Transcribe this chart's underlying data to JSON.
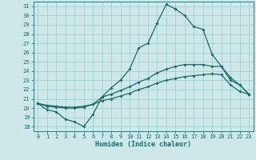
{
  "xlabel": "Humidex (Indice chaleur)",
  "bg_color": "#cce8e8",
  "line_color": "#1a6b6b",
  "grid_color": "#99cccc",
  "xlim": [
    -0.5,
    23.5
  ],
  "ylim": [
    17.5,
    31.5
  ],
  "yticks": [
    18,
    19,
    20,
    21,
    22,
    23,
    24,
    25,
    26,
    27,
    28,
    29,
    30,
    31
  ],
  "xticks": [
    0,
    1,
    2,
    3,
    4,
    5,
    6,
    7,
    8,
    9,
    10,
    11,
    12,
    13,
    14,
    15,
    16,
    17,
    18,
    19,
    20,
    21,
    22,
    23
  ],
  "line1_x": [
    0,
    1,
    2,
    3,
    4,
    5,
    6,
    7,
    8,
    9,
    10,
    11,
    12,
    13,
    14,
    15,
    16,
    17,
    18,
    19,
    20,
    21,
    22,
    23
  ],
  "line1_y": [
    20.5,
    19.8,
    19.6,
    18.8,
    18.5,
    18.0,
    19.3,
    21.2,
    22.2,
    23.0,
    24.2,
    26.5,
    27.0,
    29.2,
    31.2,
    30.7,
    30.0,
    28.8,
    28.5,
    25.8,
    24.5,
    23.0,
    22.5,
    21.5
  ],
  "line2_x": [
    0,
    1,
    2,
    3,
    4,
    5,
    6,
    7,
    8,
    9,
    10,
    11,
    12,
    13,
    14,
    15,
    16,
    17,
    18,
    19,
    20,
    21,
    22,
    23
  ],
  "line2_y": [
    20.5,
    20.2,
    20.1,
    20.0,
    20.0,
    20.1,
    20.4,
    21.2,
    21.5,
    21.9,
    22.3,
    22.8,
    23.2,
    23.8,
    24.2,
    24.5,
    24.7,
    24.7,
    24.7,
    24.5,
    24.5,
    23.3,
    22.5,
    21.5
  ],
  "line3_x": [
    0,
    1,
    2,
    3,
    4,
    5,
    6,
    7,
    8,
    9,
    10,
    11,
    12,
    13,
    14,
    15,
    16,
    17,
    18,
    19,
    20,
    21,
    22,
    23
  ],
  "line3_y": [
    20.5,
    20.3,
    20.2,
    20.1,
    20.1,
    20.2,
    20.4,
    20.8,
    21.0,
    21.3,
    21.6,
    22.0,
    22.3,
    22.7,
    23.0,
    23.2,
    23.4,
    23.5,
    23.6,
    23.7,
    23.6,
    22.5,
    21.8,
    21.5
  ]
}
